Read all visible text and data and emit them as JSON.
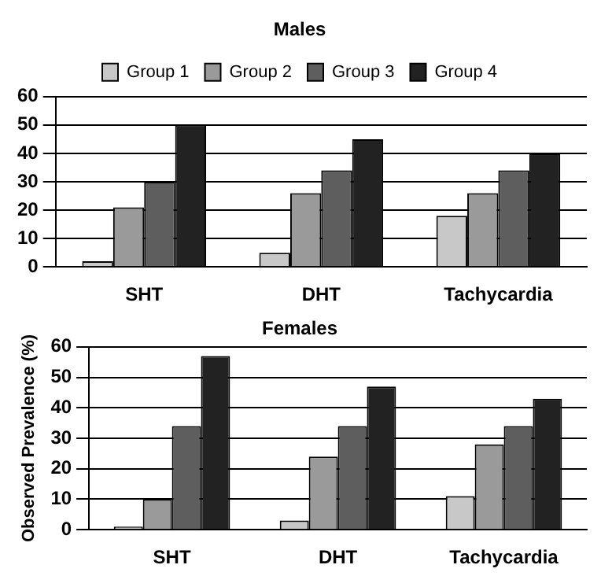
{
  "chart_data": [
    {
      "type": "bar",
      "title": "Males",
      "categories": [
        "SHT",
        "DHT",
        "Tachycardia"
      ],
      "series": [
        {
          "name": "Group 1",
          "color": "#c8c8c8",
          "values": [
            2,
            5,
            18
          ]
        },
        {
          "name": "Group 2",
          "color": "#9a9a9a",
          "values": [
            21,
            26,
            26
          ]
        },
        {
          "name": "Group 3",
          "color": "#5e5e5e",
          "values": [
            30,
            34,
            34
          ]
        },
        {
          "name": "Group 4",
          "color": "#222222",
          "values": [
            50,
            45,
            40
          ]
        }
      ],
      "ylim": [
        0,
        60
      ],
      "yticks": [
        0,
        10,
        20,
        30,
        40,
        50,
        60
      ],
      "grid": "y",
      "legend": "top"
    },
    {
      "type": "bar",
      "title": "Females",
      "ylabel": "Observed Prevalence (%)",
      "categories": [
        "SHT",
        "DHT",
        "Tachycardia"
      ],
      "series": [
        {
          "color": "#c8c8c8",
          "values": [
            1,
            3,
            11
          ]
        },
        {
          "color": "#9a9a9a",
          "values": [
            10,
            24,
            28
          ]
        },
        {
          "color": "#5e5e5e",
          "values": [
            34,
            34,
            34
          ]
        },
        {
          "color": "#222222",
          "values": [
            57,
            47,
            43
          ]
        }
      ],
      "ylim": [
        0,
        60
      ],
      "yticks": [
        0,
        10,
        20,
        30,
        40,
        50,
        60
      ],
      "grid": "y"
    }
  ]
}
